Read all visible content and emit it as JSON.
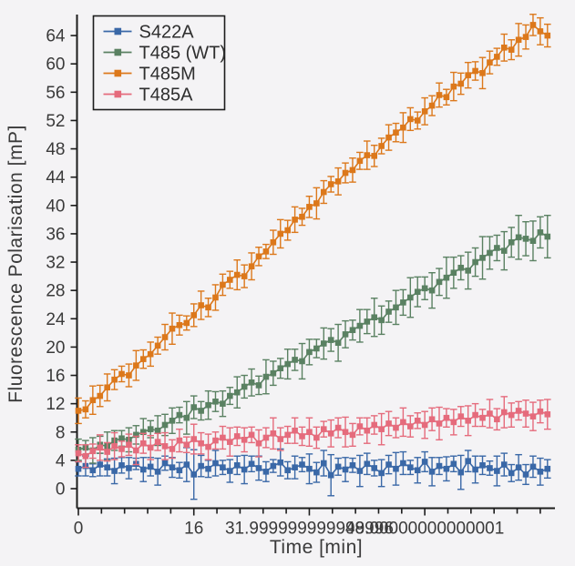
{
  "figure": {
    "background": "#f4f3f5",
    "spine_color": "#1c1c1c",
    "text_color": "#3a3a3a"
  },
  "chart_data": {
    "type": "line",
    "title": "",
    "xlabel": "Time [min]",
    "ylabel": "Fluorescence Polarisation [mP]",
    "xlim": [
      0,
      66
    ],
    "ylim": [
      -2.7,
      66.8
    ],
    "x_major_ticks": [
      0,
      16,
      32,
      48
    ],
    "x_minor_step": 3.2,
    "x_tick_max": 64,
    "y_ticks": [
      0,
      4,
      8,
      12,
      16,
      20,
      24,
      28,
      32,
      36,
      40,
      44,
      48,
      52,
      56,
      60,
      64
    ],
    "grid": false,
    "legend_position": "upper-left",
    "marker": "square",
    "error_caps": true,
    "x": [
      0,
      1,
      2,
      3,
      4,
      5,
      6,
      7,
      8,
      9,
      10,
      11,
      12,
      13,
      14,
      15,
      16,
      17,
      18,
      19,
      20,
      21,
      22,
      23,
      24,
      25,
      26,
      27,
      28,
      29,
      30,
      31,
      32,
      33,
      34,
      35,
      36,
      37,
      38,
      39,
      40,
      41,
      42,
      43,
      44,
      45,
      46,
      47,
      48,
      49,
      50,
      51,
      52,
      53,
      54,
      55,
      56,
      57,
      58,
      59,
      60,
      61,
      62,
      63,
      64,
      65
    ],
    "series": [
      {
        "name": "S422A",
        "color": "#3a68a7",
        "values": [
          2.8,
          3.2,
          2.6,
          3.4,
          3.0,
          2.5,
          3.3,
          2.9,
          3.5,
          2.7,
          3.1,
          2.4,
          3.6,
          3.0,
          2.6,
          3.4,
          2.0,
          3.2,
          2.8,
          3.6,
          3.0,
          2.5,
          3.3,
          2.7,
          3.5,
          2.9,
          2.4,
          3.2,
          3.7,
          2.6,
          3.0,
          3.4,
          2.8,
          2.3,
          3.6,
          1.9,
          3.1,
          2.7,
          3.3,
          2.5,
          3.5,
          2.9,
          2.2,
          3.4,
          2.8,
          3.6,
          3.0,
          2.6,
          3.8,
          2.4,
          3.2,
          2.8,
          3.5,
          2.3,
          3.9,
          2.7,
          3.3,
          2.9,
          2.5,
          3.4,
          2.2,
          3.0,
          2.0,
          3.1,
          2.4,
          2.8
        ],
        "errors": [
          1.0,
          1.4,
          0.9,
          1.6,
          1.2,
          1.8,
          1.1,
          1.5,
          0.8,
          1.7,
          1.3,
          1.9,
          1.0,
          1.4,
          1.1,
          2.4,
          3.5,
          1.5,
          1.2,
          1.8,
          1.0,
          1.6,
          1.3,
          2.0,
          1.1,
          1.7,
          1.4,
          0.9,
          1.9,
          1.2,
          1.6,
          1.0,
          2.1,
          1.4,
          1.8,
          2.9,
          1.2,
          1.7,
          1.0,
          2.2,
          1.5,
          1.1,
          1.9,
          1.3,
          2.3,
          1.6,
          1.0,
          1.8,
          1.4,
          2.0,
          1.2,
          1.7,
          1.1,
          2.4,
          1.5,
          1.9,
          1.3,
          1.0,
          2.1,
          1.6,
          1.2,
          1.8,
          1.4,
          1.5,
          1.9,
          1.3
        ]
      },
      {
        "name": "T485 (WT)",
        "color": "#5a8162",
        "values": [
          5.5,
          5.8,
          5.4,
          6.2,
          6.0,
          6.8,
          7.1,
          6.9,
          7.6,
          8.0,
          8.4,
          8.2,
          9.0,
          9.6,
          10.4,
          10.0,
          11.5,
          11.0,
          11.8,
          12.3,
          12.0,
          13.1,
          13.6,
          14.4,
          15.0,
          14.6,
          15.8,
          16.3,
          17.0,
          17.6,
          18.2,
          18.0,
          19.3,
          19.8,
          20.5,
          21.0,
          20.6,
          21.8,
          22.4,
          23.0,
          23.6,
          24.2,
          23.8,
          25.0,
          25.6,
          26.3,
          27.0,
          27.8,
          28.3,
          28.0,
          29.2,
          29.8,
          30.5,
          31.2,
          30.8,
          32.0,
          32.6,
          33.3,
          34.0,
          33.6,
          34.8,
          35.5,
          35.3,
          35.0,
          36.2,
          35.6
        ],
        "errors": [
          1.5,
          1.0,
          1.8,
          1.2,
          2.0,
          1.4,
          1.1,
          1.7,
          1.3,
          1.9,
          1.2,
          2.1,
          1.5,
          1.8,
          1.1,
          2.3,
          1.6,
          1.3,
          2.0,
          1.4,
          1.8,
          1.2,
          2.2,
          1.6,
          1.9,
          1.3,
          2.4,
          1.7,
          1.4,
          2.1,
          1.5,
          2.5,
          1.8,
          1.3,
          2.2,
          1.6,
          2.6,
          1.9,
          1.4,
          2.3,
          1.7,
          2.7,
          2.0,
          1.5,
          2.4,
          1.8,
          2.8,
          2.1,
          1.6,
          2.5,
          1.9,
          2.9,
          2.2,
          1.7,
          2.6,
          2.0,
          3.0,
          2.3,
          1.8,
          2.7,
          2.1,
          3.1,
          2.4,
          2.8,
          2.2,
          3.0
        ]
      },
      {
        "name": "T485M",
        "color": "#dc781b",
        "values": [
          11.0,
          11.2,
          12.5,
          13.1,
          14.3,
          15.4,
          16.2,
          16.0,
          17.4,
          18.3,
          19.0,
          20.2,
          21.4,
          22.6,
          23.1,
          23.4,
          24.5,
          25.9,
          25.6,
          27.0,
          28.8,
          29.5,
          30.2,
          30.0,
          31.4,
          32.8,
          33.5,
          34.8,
          36.0,
          36.5,
          38.0,
          38.4,
          39.8,
          40.3,
          41.9,
          43.0,
          43.4,
          44.6,
          45.0,
          46.3,
          47.1,
          47.0,
          48.4,
          49.6,
          50.3,
          51.0,
          52.2,
          52.0,
          53.3,
          54.1,
          55.6,
          55.3,
          56.8,
          57.2,
          58.4,
          59.0,
          58.7,
          60.2,
          61.0,
          62.3,
          62.0,
          63.4,
          63.8,
          65.5,
          64.6,
          64.0
        ],
        "errors": [
          1.8,
          1.2,
          2.0,
          1.5,
          1.9,
          1.4,
          1.1,
          1.6,
          2.1,
          1.3,
          1.7,
          1.2,
          1.8,
          2.2,
          1.4,
          1.0,
          1.6,
          2.0,
          1.3,
          1.8,
          1.5,
          1.2,
          2.1,
          1.6,
          1.9,
          1.3,
          1.0,
          1.7,
          2.0,
          1.4,
          1.8,
          1.2,
          1.5,
          2.2,
          1.6,
          1.1,
          1.9,
          1.4,
          1.7,
          1.2,
          2.0,
          1.5,
          1.1,
          1.8,
          1.3,
          2.1,
          1.6,
          1.2,
          1.9,
          1.4,
          1.7,
          1.1,
          2.0,
          1.5,
          1.8,
          1.3,
          2.2,
          1.6,
          1.2,
          1.9,
          1.4,
          2.3,
          1.7,
          1.5,
          1.9,
          1.6
        ]
      },
      {
        "name": "T485A",
        "color": "#e56b7c",
        "values": [
          5.0,
          4.6,
          5.3,
          5.8,
          5.2,
          6.0,
          5.6,
          6.2,
          5.4,
          6.4,
          5.8,
          6.6,
          6.0,
          5.6,
          6.8,
          6.2,
          7.0,
          6.4,
          5.9,
          6.8,
          7.2,
          6.6,
          7.4,
          6.9,
          7.6,
          6.4,
          7.2,
          7.8,
          7.0,
          7.6,
          8.2,
          7.4,
          8.0,
          7.2,
          8.4,
          7.8,
          8.6,
          8.0,
          7.6,
          8.8,
          8.2,
          9.0,
          8.4,
          9.2,
          8.6,
          9.4,
          8.8,
          9.6,
          9.0,
          9.8,
          9.2,
          10.0,
          9.4,
          10.2,
          9.6,
          10.4,
          10.0,
          10.6,
          9.8,
          10.8,
          10.4,
          11.0,
          10.6,
          10.2,
          10.9,
          10.5
        ],
        "errors": [
          1.2,
          1.6,
          1.0,
          1.8,
          1.3,
          1.9,
          1.1,
          1.5,
          2.0,
          1.4,
          1.7,
          1.2,
          1.9,
          1.3,
          1.6,
          1.1,
          2.1,
          1.5,
          1.8,
          1.2,
          1.6,
          2.0,
          1.3,
          1.7,
          1.1,
          1.9,
          1.4,
          2.2,
          1.6,
          1.2,
          1.8,
          1.3,
          2.0,
          1.5,
          1.1,
          1.9,
          1.4,
          2.1,
          1.6,
          1.2,
          1.8,
          1.3,
          2.2,
          1.7,
          1.4,
          2.0,
          1.5,
          1.1,
          1.9,
          1.6,
          2.3,
          1.3,
          1.8,
          1.4,
          2.1,
          1.6,
          1.2,
          2.0,
          1.5,
          2.2,
          1.7,
          1.3,
          1.9,
          2.0,
          1.6,
          2.1
        ]
      }
    ]
  }
}
